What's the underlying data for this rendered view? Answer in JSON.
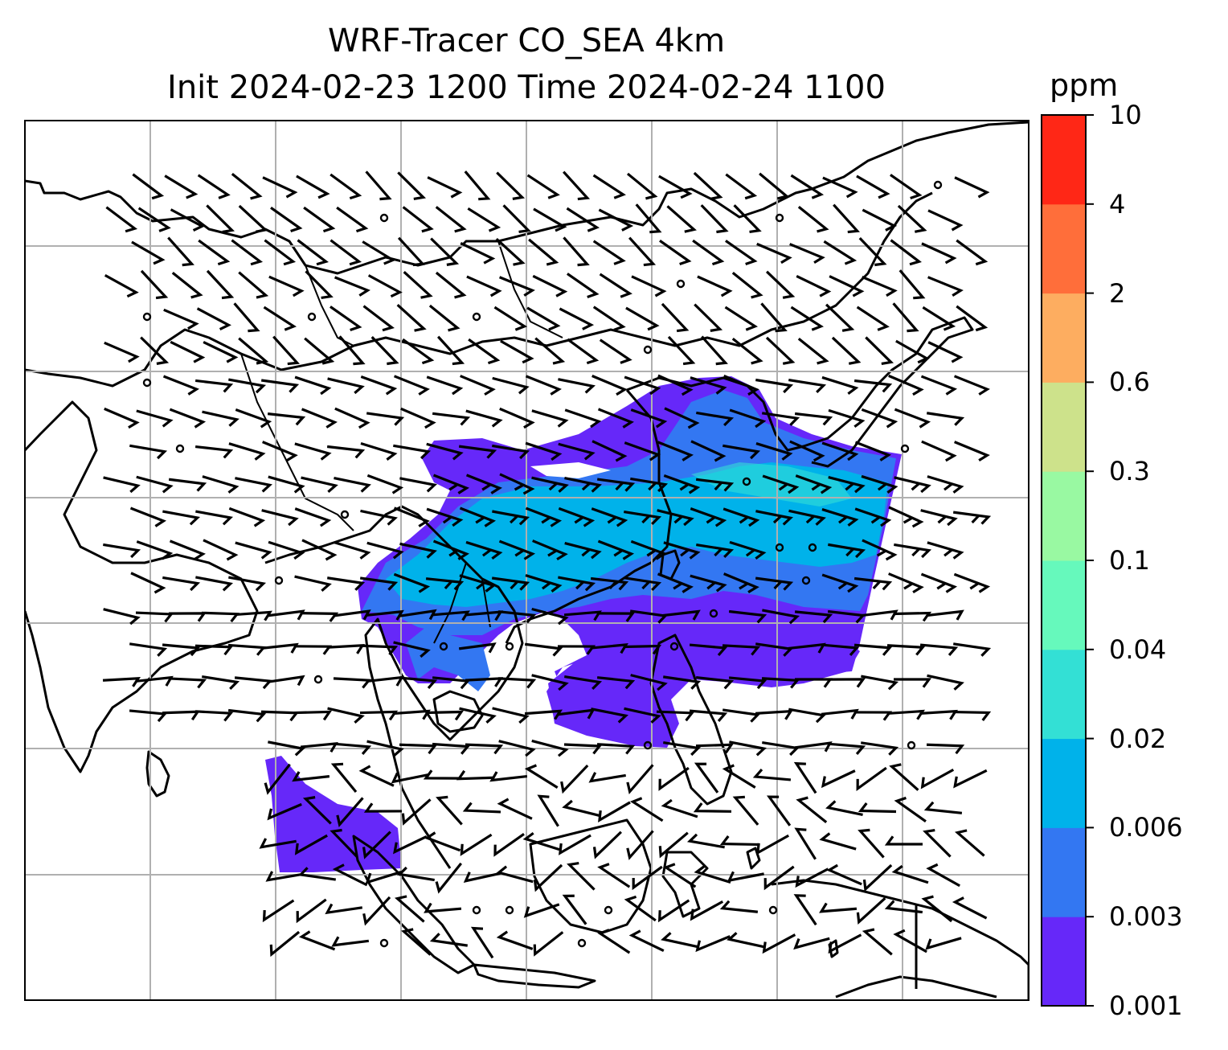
{
  "title_line1": "WRF-Tracer CO_SEA 4km",
  "title_line2": "Init 2024-02-23 1200 Time 2024-02-24 1100",
  "colorbar": {
    "unit": "ppm",
    "levels": [
      "0.001",
      "0.003",
      "0.006",
      "0.02",
      "0.04",
      "0.1",
      "0.3",
      "0.6",
      "2",
      "4",
      "10"
    ],
    "colors": [
      "#6628f9",
      "#3377f2",
      "#00b2ea",
      "#33e0d5",
      "#66f9bc",
      "#99f9a2",
      "#cde28b",
      "#fdad60",
      "#ff6e3a",
      "#ff2716"
    ]
  },
  "map": {
    "land_outline_color": "#000000",
    "gridline_color": "#b0b0b0",
    "wind_barb_color": "#000000"
  }
}
